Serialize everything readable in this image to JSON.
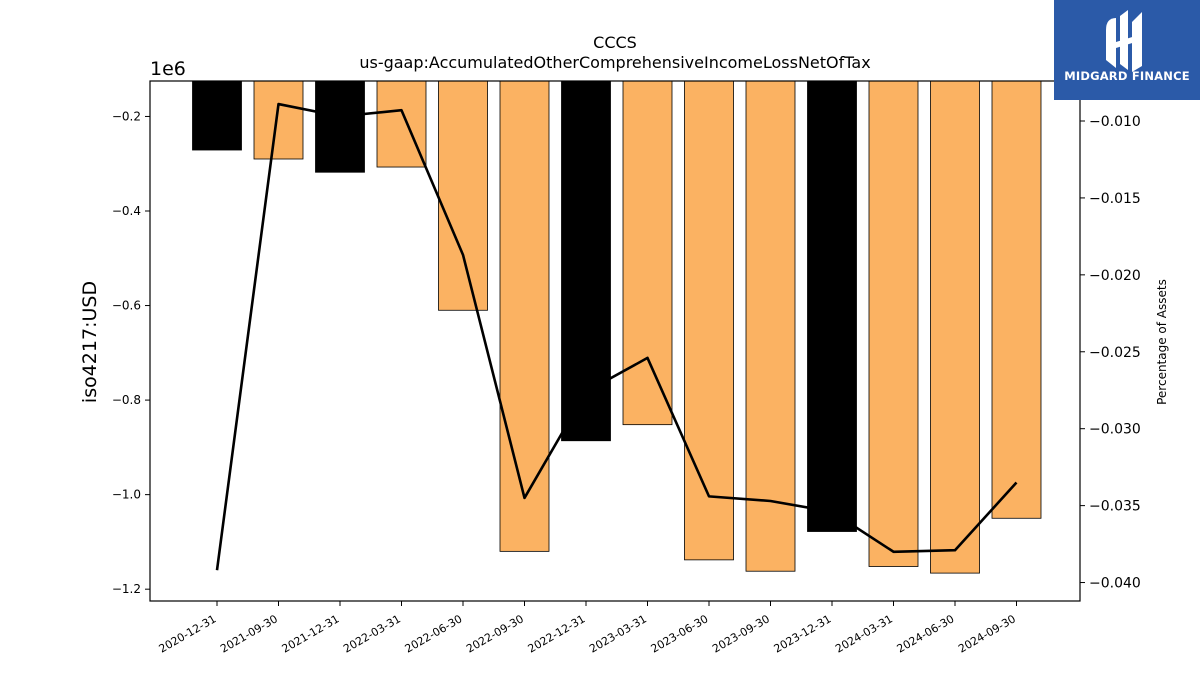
{
  "chart_data": {
    "type": "bar",
    "title": "CCCS",
    "subtitle": "us-gaap:AccumulatedOtherComprehensiveIncomeLossNetOfTax",
    "ylabel": "iso4217:USD",
    "y2label": "Percentage of Assets",
    "y_offset_label": "1e6",
    "categories": [
      "2020-12-31",
      "2021-09-30",
      "2021-12-31",
      "2022-03-31",
      "2022-06-30",
      "2022-09-30",
      "2022-12-31",
      "2023-03-31",
      "2023-06-30",
      "2023-09-30",
      "2023-12-31",
      "2024-03-31",
      "2024-06-30",
      "2024-09-30"
    ],
    "series": [
      {
        "type": "bar",
        "values": [
          -271000,
          -290000,
          -318000,
          -307000,
          -610000,
          -1120000,
          -886000,
          -852000,
          -1138000,
          -1162000,
          -1078000,
          -1152000,
          -1166000,
          -1050000
        ],
        "bar_colors": [
          "#000000",
          "#fbb262",
          "#000000",
          "#fbb262",
          "#fbb262",
          "#fbb262",
          "#000000",
          "#fbb262",
          "#fbb262",
          "#fbb262",
          "#000000",
          "#fbb262",
          "#fbb262",
          "#fbb262"
        ]
      },
      {
        "type": "line",
        "axis": "right",
        "values": [
          -0.0392,
          -0.0089,
          -0.0097,
          -0.0093,
          -0.0187,
          -0.0345,
          -0.0276,
          -0.0254,
          -0.0344,
          -0.0347,
          -0.0354,
          -0.038,
          -0.0379,
          -0.0335
        ],
        "color": "#000000"
      }
    ],
    "ylim": [
      -1.225,
      -0.125
    ],
    "yticks": [
      -0.2,
      -0.4,
      -0.6,
      -0.8,
      -1.0,
      -1.2
    ],
    "ytick_labels": [
      "−0.2",
      "−0.4",
      "−0.6",
      "−0.8",
      "−1.0",
      "−1.2"
    ],
    "y2lim": [
      -0.0412,
      -0.0074
    ],
    "y2ticks": [
      -0.01,
      -0.015,
      -0.02,
      -0.025,
      -0.03,
      -0.035,
      -0.04
    ],
    "y2tick_labels": [
      "−0.010",
      "−0.015",
      "−0.020",
      "−0.025",
      "−0.030",
      "−0.035",
      "−0.040"
    ],
    "grid": false
  },
  "logo": {
    "text": "MIDGARD FINANCE",
    "color": "#2b5aa8"
  }
}
